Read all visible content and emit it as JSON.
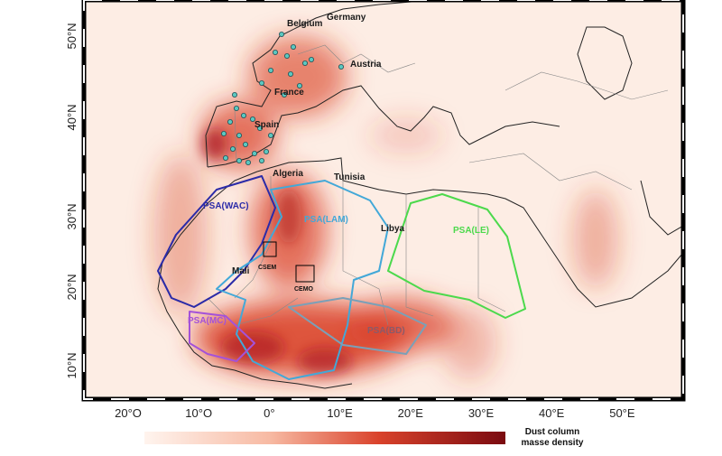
{
  "map": {
    "country_labels": [
      "Belgium",
      "Germany",
      "Austria",
      "France",
      "Spain",
      "Algeria",
      "Tunisia",
      "Libya",
      "Mali"
    ],
    "region_labels": [
      "PSA(WAC)",
      "PSA(LAM)",
      "PSA(LE)",
      "PSA(MC)",
      "PSA(BD)"
    ],
    "site_labels": [
      "CSEM",
      "CEMO"
    ],
    "lon_labels": [
      "20°O",
      "10°O",
      "0°",
      "10°E",
      "20°E",
      "30°E",
      "40°E",
      "50°E"
    ],
    "lat_labels": [
      "50°N",
      "40°N",
      "30°N",
      "20°N",
      "10°N"
    ],
    "legend": {
      "title_lines": [
        "Dust column",
        "masse density"
      ]
    }
  }
}
